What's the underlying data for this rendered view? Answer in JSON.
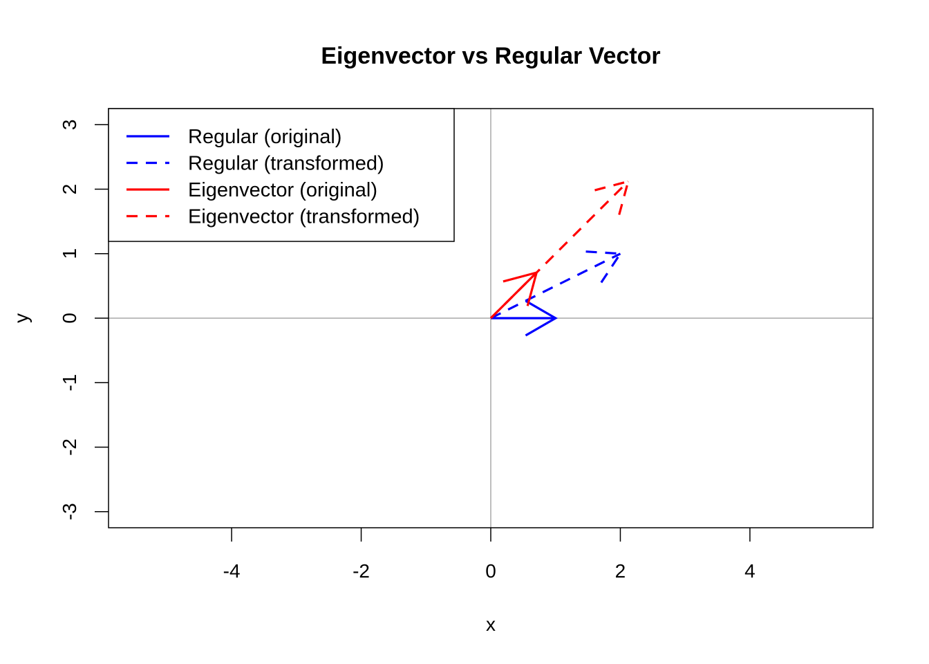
{
  "chart_data": {
    "type": "line",
    "title": "Eigenvector vs Regular Vector",
    "xlabel": "x",
    "ylabel": "y",
    "xlim": [
      -5.9,
      5.9
    ],
    "ylim": [
      -3.25,
      3.25
    ],
    "xticks": [
      -4,
      -2,
      0,
      2,
      4
    ],
    "yticks": [
      -3,
      -2,
      -1,
      0,
      1,
      2,
      3
    ],
    "reference_lines": {
      "x": 0,
      "y": 0,
      "color": "#bebebe"
    },
    "legend": {
      "position": "top-left"
    },
    "series": [
      {
        "name": "Regular (original)",
        "color": "#0000ff",
        "dashed": false,
        "from": [
          0,
          0
        ],
        "to": [
          1,
          0
        ]
      },
      {
        "name": "Regular (transformed)",
        "color": "#0000ff",
        "dashed": true,
        "from": [
          0,
          0
        ],
        "to": [
          2,
          1
        ]
      },
      {
        "name": "Eigenvector (original)",
        "color": "#ff0000",
        "dashed": false,
        "from": [
          0,
          0
        ],
        "to": [
          0.707,
          0.707
        ]
      },
      {
        "name": "Eigenvector (transformed)",
        "color": "#ff0000",
        "dashed": true,
        "from": [
          0,
          0
        ],
        "to": [
          2.121,
          2.121
        ]
      }
    ]
  }
}
